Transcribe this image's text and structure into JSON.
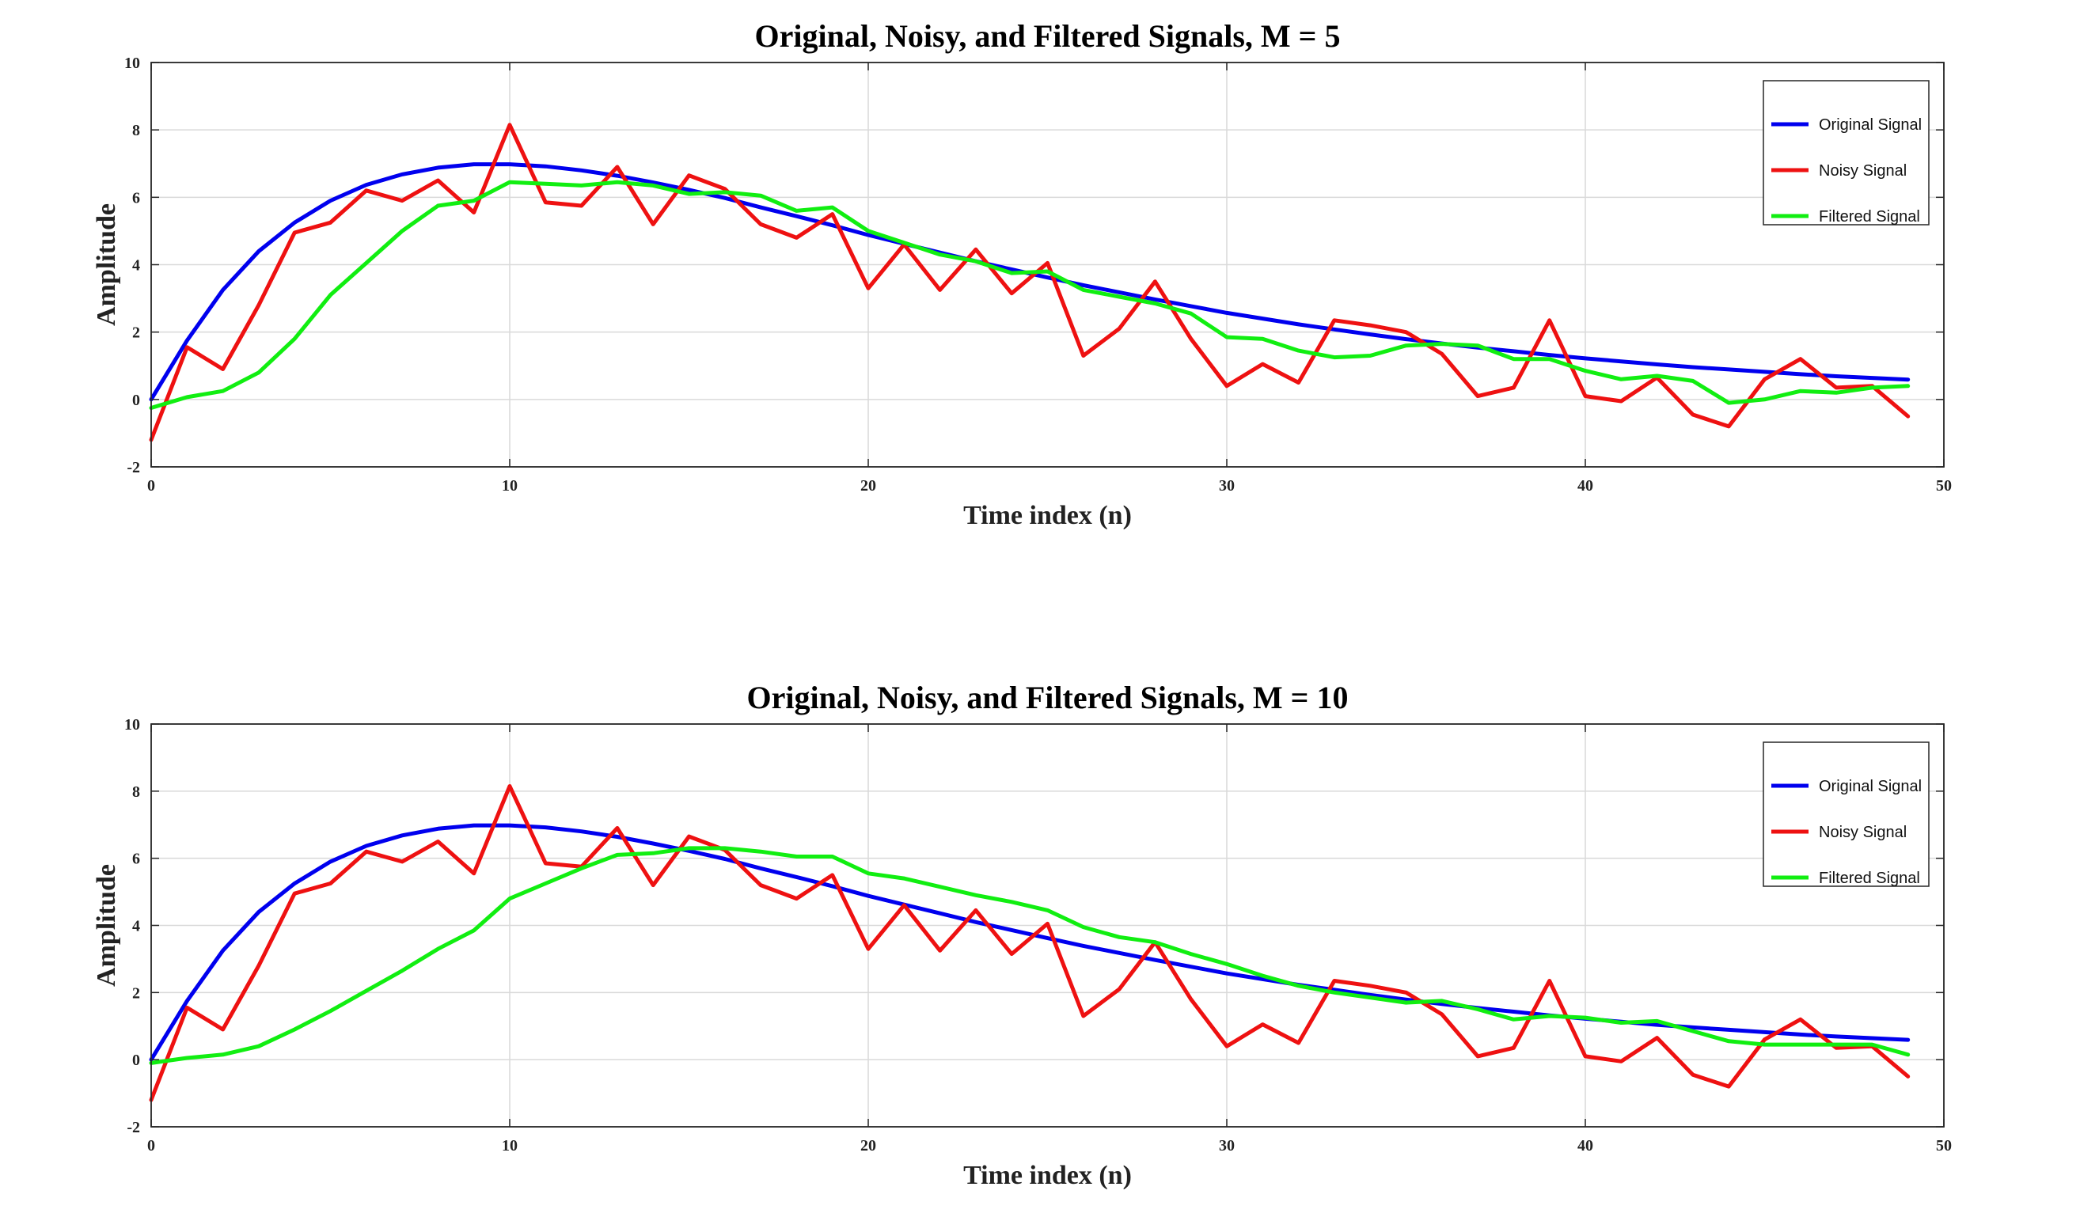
{
  "chart_data": [
    {
      "type": "line",
      "title": "Original, Noisy, and Filtered Signals, M = 5",
      "xlabel": "Time index (n)",
      "ylabel": "Amplitude",
      "xlim": [
        0,
        50
      ],
      "ylim": [
        -2,
        10
      ],
      "xticks": [
        "0",
        "10",
        "20",
        "30",
        "40",
        "50"
      ],
      "yticks": [
        "-2",
        "0",
        "2",
        "4",
        "6",
        "8",
        "10"
      ],
      "grid": true,
      "legend_position": "top-right",
      "x": [
        0,
        1,
        2,
        3,
        4,
        5,
        6,
        7,
        8,
        9,
        10,
        11,
        12,
        13,
        14,
        15,
        16,
        17,
        18,
        19,
        20,
        21,
        22,
        23,
        24,
        25,
        26,
        27,
        28,
        29,
        30,
        31,
        32,
        33,
        34,
        35,
        36,
        37,
        38,
        39,
        40,
        41,
        42,
        43,
        44,
        45,
        46,
        47,
        48,
        49
      ],
      "series": [
        {
          "name": "Original Signal",
          "color": "#0000ee",
          "values": [
            0,
            1.75,
            3.25,
            4.4,
            5.25,
            5.9,
            6.37,
            6.68,
            6.88,
            6.98,
            6.98,
            6.92,
            6.8,
            6.64,
            6.44,
            6.22,
            5.98,
            5.7,
            5.44,
            5.17,
            4.88,
            4.62,
            4.36,
            4.1,
            3.86,
            3.62,
            3.39,
            3.18,
            2.97,
            2.77,
            2.57,
            2.4,
            2.23,
            2.08,
            1.93,
            1.79,
            1.66,
            1.54,
            1.43,
            1.32,
            1.22,
            1.13,
            1.04,
            0.96,
            0.89,
            0.82,
            0.75,
            0.69,
            0.64,
            0.59
          ]
        },
        {
          "name": "Noisy Signal",
          "color": "#ee1111",
          "values": [
            -1.2,
            1.55,
            0.9,
            2.8,
            4.95,
            5.25,
            6.2,
            5.9,
            6.5,
            5.55,
            8.15,
            5.85,
            5.75,
            6.9,
            5.2,
            6.65,
            6.25,
            5.2,
            4.8,
            5.5,
            3.3,
            4.6,
            3.25,
            4.45,
            3.15,
            4.05,
            1.3,
            2.1,
            3.5,
            1.8,
            0.4,
            1.05,
            0.5,
            2.35,
            2.2,
            2.0,
            1.35,
            0.1,
            0.35,
            2.35,
            0.1,
            -0.05,
            0.65,
            -0.45,
            -0.8,
            0.6,
            1.2,
            0.35,
            0.4,
            -0.5
          ]
        },
        {
          "name": "Filtered Signal",
          "color": "#11ee11",
          "values": [
            -0.25,
            0.07,
            0.25,
            0.8,
            1.8,
            3.1,
            4.05,
            5.0,
            5.75,
            5.9,
            6.45,
            6.4,
            6.35,
            6.45,
            6.35,
            6.1,
            6.15,
            6.05,
            5.6,
            5.7,
            5.0,
            4.65,
            4.3,
            4.1,
            3.75,
            3.8,
            3.25,
            3.05,
            2.85,
            2.55,
            1.85,
            1.8,
            1.45,
            1.25,
            1.3,
            1.6,
            1.65,
            1.6,
            1.2,
            1.2,
            0.85,
            0.6,
            0.7,
            0.55,
            -0.1,
            0.0,
            0.25,
            0.2,
            0.35,
            0.4
          ]
        }
      ]
    },
    {
      "type": "line",
      "title": "Original, Noisy, and Filtered Signals, M = 10",
      "xlabel": "Time index (n)",
      "ylabel": "Amplitude",
      "xlim": [
        0,
        50
      ],
      "ylim": [
        -2,
        10
      ],
      "xticks": [
        "0",
        "10",
        "20",
        "30",
        "40",
        "50"
      ],
      "yticks": [
        "-2",
        "0",
        "2",
        "4",
        "6",
        "8",
        "10"
      ],
      "grid": true,
      "legend_position": "top-right",
      "x": [
        0,
        1,
        2,
        3,
        4,
        5,
        6,
        7,
        8,
        9,
        10,
        11,
        12,
        13,
        14,
        15,
        16,
        17,
        18,
        19,
        20,
        21,
        22,
        23,
        24,
        25,
        26,
        27,
        28,
        29,
        30,
        31,
        32,
        33,
        34,
        35,
        36,
        37,
        38,
        39,
        40,
        41,
        42,
        43,
        44,
        45,
        46,
        47,
        48,
        49
      ],
      "series": [
        {
          "name": "Original Signal",
          "color": "#0000ee",
          "values": [
            0,
            1.75,
            3.25,
            4.4,
            5.25,
            5.9,
            6.37,
            6.68,
            6.88,
            6.98,
            6.98,
            6.92,
            6.8,
            6.64,
            6.44,
            6.22,
            5.98,
            5.7,
            5.44,
            5.17,
            4.88,
            4.62,
            4.36,
            4.1,
            3.86,
            3.62,
            3.39,
            3.18,
            2.97,
            2.77,
            2.57,
            2.4,
            2.23,
            2.08,
            1.93,
            1.79,
            1.66,
            1.54,
            1.43,
            1.32,
            1.22,
            1.13,
            1.04,
            0.96,
            0.89,
            0.82,
            0.75,
            0.69,
            0.64,
            0.59
          ]
        },
        {
          "name": "Noisy Signal",
          "color": "#ee1111",
          "values": [
            -1.2,
            1.55,
            0.9,
            2.8,
            4.95,
            5.25,
            6.2,
            5.9,
            6.5,
            5.55,
            8.15,
            5.85,
            5.75,
            6.9,
            5.2,
            6.65,
            6.25,
            5.2,
            4.8,
            5.5,
            3.3,
            4.6,
            3.25,
            4.45,
            3.15,
            4.05,
            1.3,
            2.1,
            3.5,
            1.8,
            0.4,
            1.05,
            0.5,
            2.35,
            2.2,
            2.0,
            1.35,
            0.1,
            0.35,
            2.35,
            0.1,
            -0.05,
            0.65,
            -0.45,
            -0.8,
            0.6,
            1.2,
            0.35,
            0.4,
            -0.5
          ]
        },
        {
          "name": "Filtered Signal",
          "color": "#11ee11",
          "values": [
            -0.1,
            0.05,
            0.15,
            0.4,
            0.9,
            1.45,
            2.05,
            2.65,
            3.3,
            3.85,
            4.8,
            5.25,
            5.7,
            6.1,
            6.15,
            6.3,
            6.3,
            6.2,
            6.05,
            6.05,
            5.55,
            5.4,
            5.15,
            4.9,
            4.7,
            4.45,
            3.95,
            3.65,
            3.5,
            3.15,
            2.85,
            2.5,
            2.2,
            2.0,
            1.85,
            1.7,
            1.75,
            1.5,
            1.2,
            1.3,
            1.25,
            1.1,
            1.15,
            0.85,
            0.55,
            0.45,
            0.45,
            0.45,
            0.45,
            0.15
          ]
        }
      ]
    }
  ]
}
